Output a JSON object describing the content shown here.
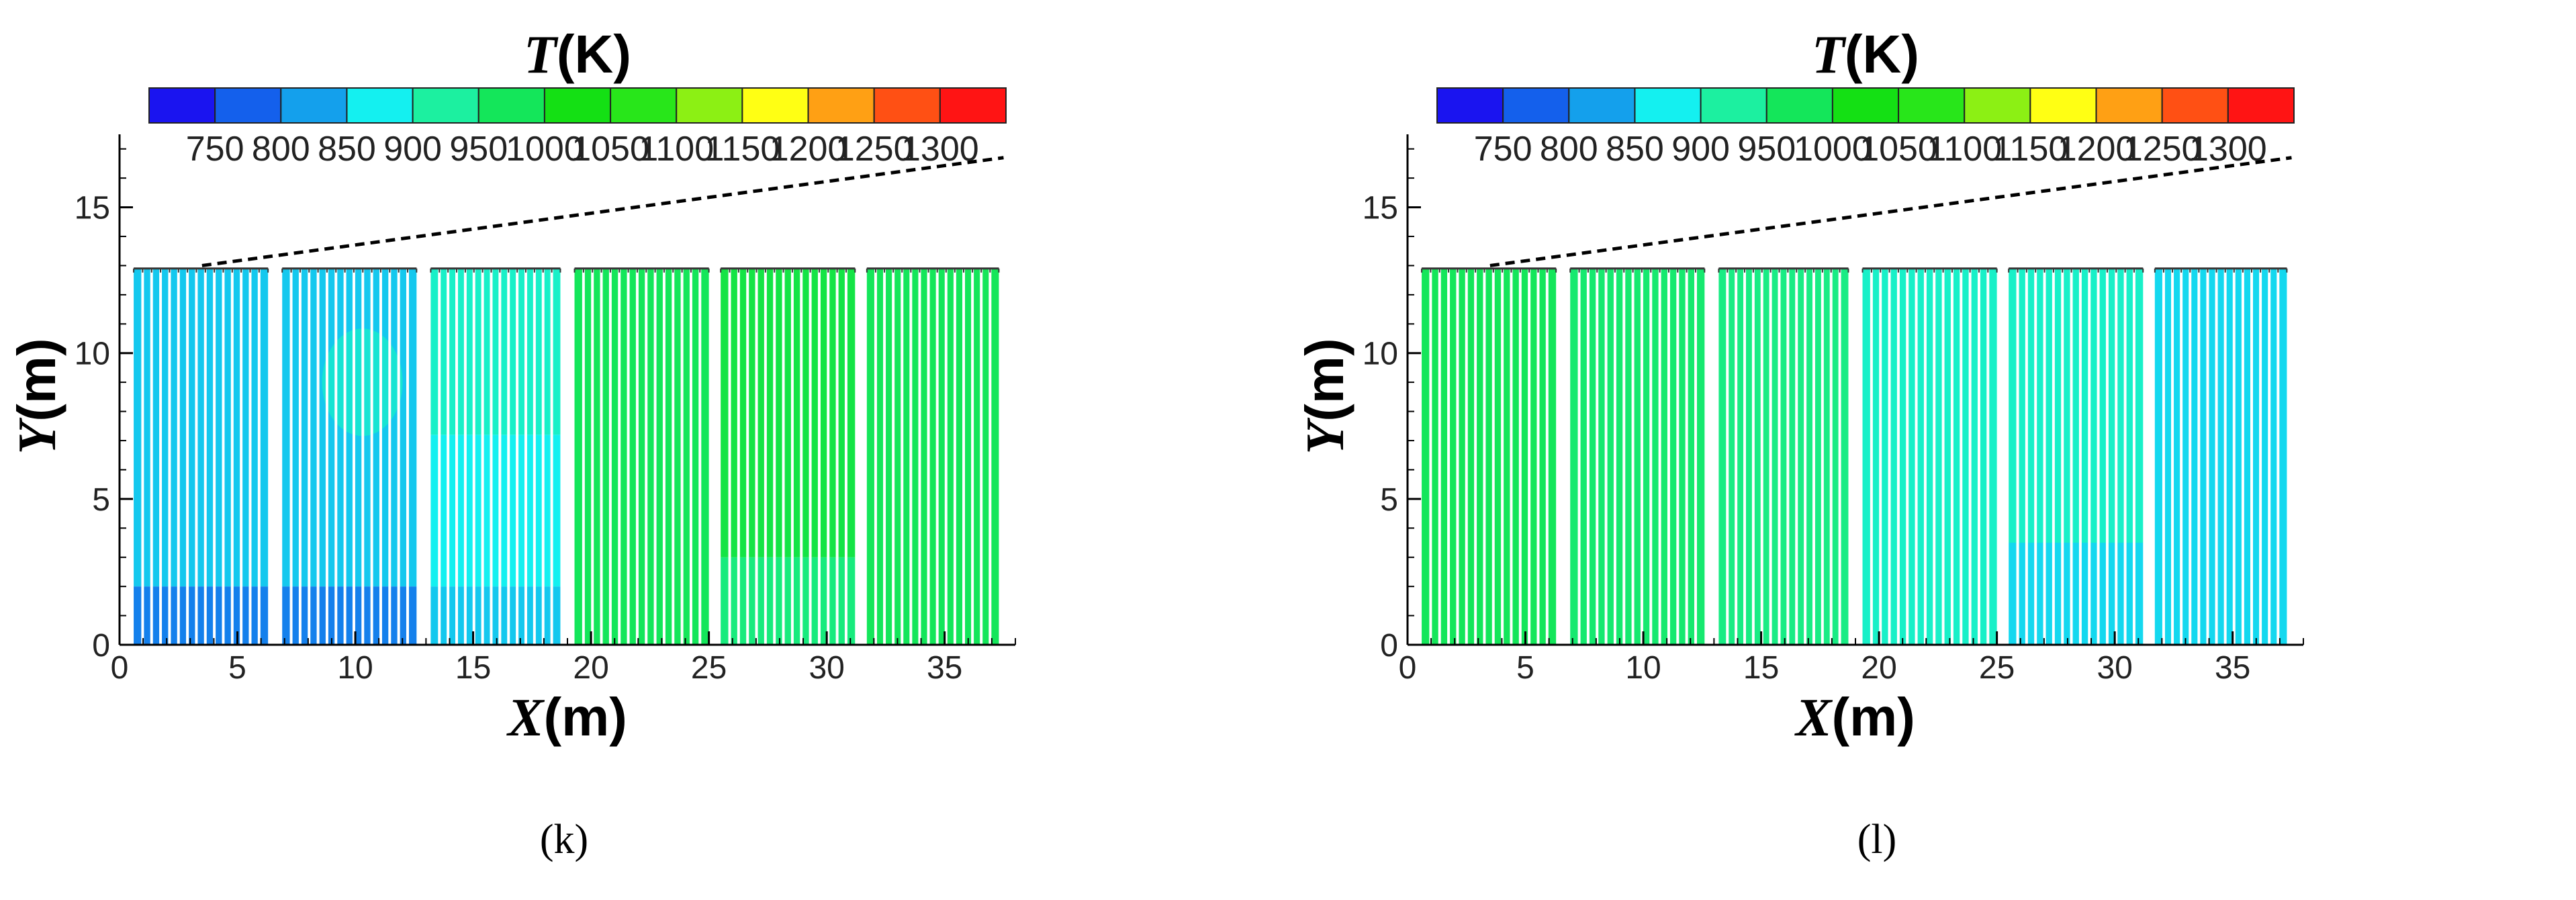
{
  "chart_data": [
    {
      "type": "heatmap",
      "panel_label": "(k)",
      "colorbar": {
        "title_var": "T",
        "title_unit": "(K)",
        "ticks": [
          "750",
          "800",
          "850",
          "900",
          "950",
          "1000",
          "1050",
          "1100",
          "1150",
          "1200",
          "1250",
          "1300"
        ],
        "colors": [
          "#1a14f0",
          "#1460ec",
          "#14a0ec",
          "#14f0f0",
          "#1cf0a0",
          "#14e65a",
          "#14e014",
          "#28e61a",
          "#8cf014",
          "#ffff14",
          "#ffa014",
          "#ff5014",
          "#ff1414"
        ]
      },
      "xlabel_var": "X",
      "xlabel_unit": "(m)",
      "ylabel_var": "Y",
      "ylabel_unit": "(m)",
      "xlim": [
        0,
        38
      ],
      "ylim": [
        0,
        17.5
      ],
      "xticks": [
        "0",
        "5",
        "10",
        "15",
        "20",
        "25",
        "30",
        "35"
      ],
      "yticks": [
        "0",
        "5",
        "10",
        "15"
      ],
      "xtick_values": [
        0,
        5,
        10,
        15,
        20,
        25,
        30,
        35
      ],
      "ytick_values": [
        0,
        5,
        10,
        15
      ],
      "tube_height_m": 12.9,
      "roof_line": [
        [
          3.5,
          13.0
        ],
        [
          37.5,
          16.7
        ]
      ],
      "banks": [
        {
          "x0": 0.6,
          "x1": 6.3,
          "zones": [
            [
              0,
              2.0,
              800
            ],
            [
              2.0,
              12.9,
              850
            ]
          ],
          "tint": {
            "x": 10,
            "y": 9,
            "t": 900
          }
        },
        {
          "x0": 6.9,
          "x1": 12.6,
          "zones": [
            [
              0,
              2.0,
              800
            ],
            [
              2.0,
              12.9,
              850
            ]
          ],
          "tint": {
            "x": 10.3,
            "y": 9,
            "t": 900
          }
        },
        {
          "x0": 13.2,
          "x1": 18.7,
          "zones": [
            [
              0,
              2.0,
              850
            ],
            [
              2.0,
              7.2,
              875
            ],
            [
              7.2,
              12.9,
              900
            ]
          ]
        },
        {
          "x0": 19.3,
          "x1": 25.0,
          "zones": [
            [
              0,
              12.9,
              975
            ]
          ]
        },
        {
          "x0": 25.5,
          "x1": 31.2,
          "zones": [
            [
              0,
              3.0,
              950
            ],
            [
              3.0,
              12.9,
              990
            ]
          ]
        },
        {
          "x0": 31.7,
          "x1": 37.3,
          "zones": [
            [
              0,
              12.9,
              975
            ]
          ]
        }
      ]
    },
    {
      "type": "heatmap",
      "panel_label": "(l)",
      "colorbar": {
        "title_var": "T",
        "title_unit": "(K)",
        "ticks": [
          "750",
          "800",
          "850",
          "900",
          "950",
          "1000",
          "1050",
          "1100",
          "1150",
          "1200",
          "1250",
          "1300"
        ],
        "colors": [
          "#1a14f0",
          "#1460ec",
          "#14a0ec",
          "#14f0f0",
          "#1cf0a0",
          "#14e65a",
          "#14e014",
          "#28e61a",
          "#8cf014",
          "#ffff14",
          "#ffa014",
          "#ff5014",
          "#ff1414"
        ]
      },
      "xlabel_var": "X",
      "xlabel_unit": "(m)",
      "ylabel_var": "Y",
      "ylabel_unit": "(m)",
      "xlim": [
        0,
        38
      ],
      "ylim": [
        0,
        17.5
      ],
      "xticks": [
        "0",
        "5",
        "10",
        "15",
        "20",
        "25",
        "30",
        "35"
      ],
      "yticks": [
        "0",
        "5",
        "10",
        "15"
      ],
      "xtick_values": [
        0,
        5,
        10,
        15,
        20,
        25,
        30,
        35
      ],
      "ytick_values": [
        0,
        5,
        10,
        15
      ],
      "tube_height_m": 12.9,
      "roof_line": [
        [
          3.5,
          13.0
        ],
        [
          37.5,
          16.7
        ]
      ],
      "banks": [
        {
          "x0": 0.6,
          "x1": 6.3,
          "zones": [
            [
              0,
              12.9,
              975
            ]
          ]
        },
        {
          "x0": 6.9,
          "x1": 12.6,
          "zones": [
            [
              0,
              12.9,
              960
            ]
          ]
        },
        {
          "x0": 13.2,
          "x1": 18.7,
          "zones": [
            [
              0,
              12.9,
              945
            ]
          ]
        },
        {
          "x0": 19.3,
          "x1": 25.0,
          "zones": [
            [
              0,
              12.9,
              900
            ]
          ]
        },
        {
          "x0": 25.5,
          "x1": 31.2,
          "zones": [
            [
              0,
              3.5,
              860
            ],
            [
              3.5,
              12.9,
              900
            ]
          ]
        },
        {
          "x0": 31.7,
          "x1": 37.3,
          "zones": [
            [
              0,
              12.9,
              860
            ]
          ]
        }
      ]
    }
  ]
}
